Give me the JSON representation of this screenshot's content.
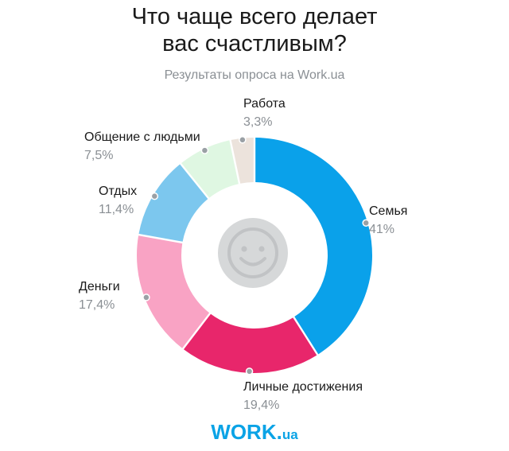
{
  "title_lines": [
    "Что чаще всего делает",
    "вас счастливым?"
  ],
  "subtitle": "Результаты опроса на Work.ua",
  "logo": {
    "main": "WORK",
    "dot": ".",
    "sub": "ua"
  },
  "chart_data": {
    "type": "pie",
    "title": "Что чаще всего делает вас счастливым?",
    "subtitle": "Результаты опроса на Work.ua",
    "legend": "labels-outside",
    "unit": "%",
    "slices": [
      {
        "label": "Семья",
        "value": 41,
        "value_text": "41%",
        "color": "#0aa1ea"
      },
      {
        "label": "Личные достижения",
        "value": 19.4,
        "value_text": "19,4%",
        "color": "#e8266b"
      },
      {
        "label": "Деньги",
        "value": 17.4,
        "value_text": "17,4%",
        "color": "#f9a3c4"
      },
      {
        "label": "Отдых",
        "value": 11.4,
        "value_text": "11,4%",
        "color": "#7cc7ee"
      },
      {
        "label": "Общение с людьми",
        "value": 7.5,
        "value_text": "7,5%",
        "color": "#dff7e2"
      },
      {
        "label": "Работа",
        "value": 3.3,
        "value_text": "3,3%",
        "color": "#ece3dc"
      }
    ],
    "center_icon": "smiley-face-icon"
  }
}
